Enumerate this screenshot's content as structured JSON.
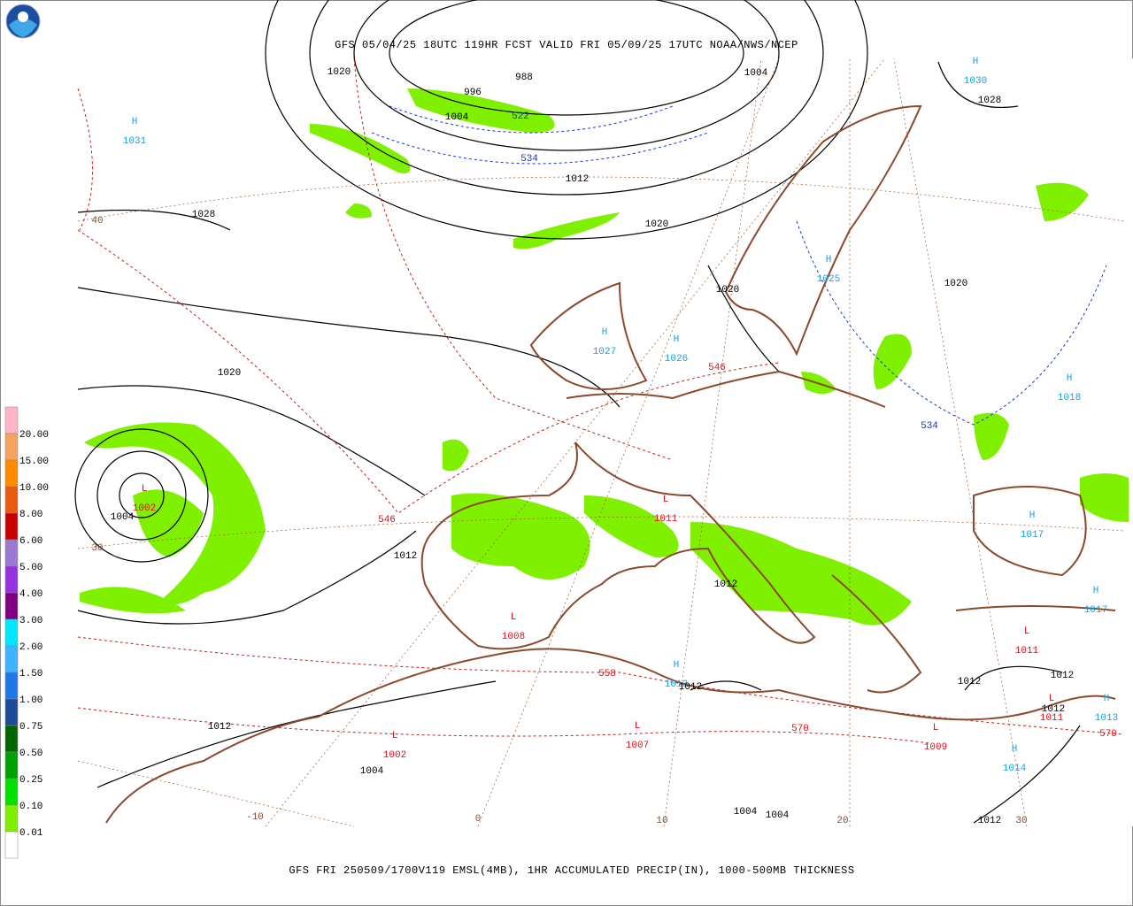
{
  "header": {
    "title": "GFS 05/04/25 18UTC 119HR FCST VALID FRI 05/09/25 17UTC NOAA/NWS/NCEP"
  },
  "footer": "GFS FRI 250509/1700V119 EMSL(4MB), 1HR ACCUMULATED PRECIP(IN), 1000-500MB THICKNESS",
  "legend": {
    "labels": [
      "20.00",
      "15.00",
      "10.00",
      "8.00",
      "6.00",
      "5.00",
      "4.00",
      "3.00",
      "2.00",
      "1.50",
      "1.00",
      "0.75",
      "0.50",
      "0.25",
      "0.10",
      "0.01"
    ]
  },
  "centers": [
    {
      "symbol": "H",
      "value": 1031
    },
    {
      "symbol": "H",
      "value": 1030
    },
    {
      "symbol": "H",
      "value": 1025
    },
    {
      "symbol": "H",
      "value": 1027
    },
    {
      "symbol": "H",
      "value": 1026
    },
    {
      "symbol": "H",
      "value": 1018
    },
    {
      "symbol": "L",
      "value": 1002
    },
    {
      "symbol": "L",
      "value": 1011
    },
    {
      "symbol": "L",
      "value": 1008
    },
    {
      "symbol": "H",
      "value": 1013
    },
    {
      "symbol": "L",
      "value": 1002
    },
    {
      "symbol": "L",
      "value": 1007
    },
    {
      "symbol": "L",
      "value": 1009
    },
    {
      "symbol": "H",
      "value": 1014
    },
    {
      "symbol": "L",
      "value": 1011
    },
    {
      "symbol": "L",
      "value": 1011
    },
    {
      "symbol": "H",
      "value": 1013
    },
    {
      "symbol": "H",
      "value": 1017
    },
    {
      "symbol": "H",
      "value": 1017
    }
  ],
  "isobar_labels": [
    1020,
    988,
    996,
    1004,
    1004,
    1012,
    1028,
    1020,
    1020,
    1020,
    1028,
    1020,
    1012,
    1012,
    1004,
    1012,
    1004,
    1012,
    1012,
    1012,
    1012,
    1004,
    1004,
    1012
  ],
  "thickness_labels": [
    522,
    534,
    534,
    546,
    546,
    558,
    570,
    570
  ],
  "grid_labels": [
    40,
    30,
    -10,
    0,
    10,
    20,
    30
  ]
}
